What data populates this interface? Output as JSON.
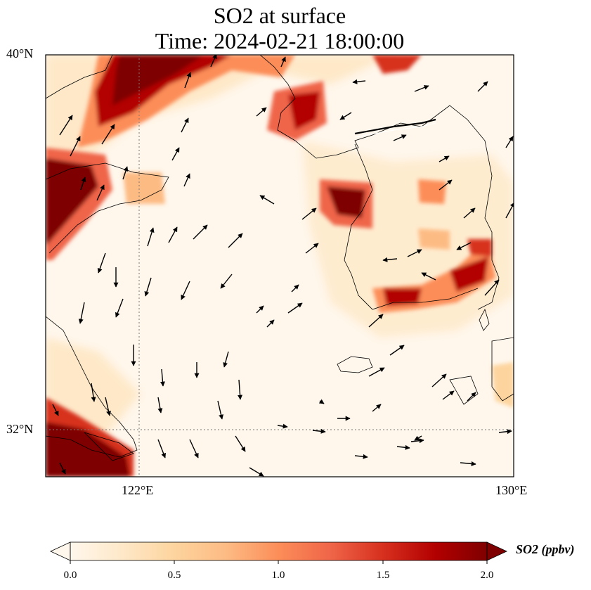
{
  "title": {
    "line1": "SO2 at surface",
    "line2": "Time: 2024-02-21 18:00:00"
  },
  "map": {
    "lat_labels": [
      "40°N",
      "32°N"
    ],
    "lon_labels": [
      "122°E",
      "130°E"
    ],
    "extent": {
      "lon_min": 120,
      "lon_max": 130,
      "lat_min": 31,
      "lat_max": 40
    },
    "gridlines": {
      "lon": [
        122
      ],
      "lat": [
        32
      ],
      "style": "dotted"
    },
    "wind_vectors": "shown as black arrows"
  },
  "colorbar": {
    "label": "SO2 (ppbv)",
    "ticks": [
      "0.0",
      "0.5",
      "1.0",
      "1.5",
      "2.0"
    ],
    "range": [
      0,
      2
    ],
    "extend": "both",
    "colormap": [
      "#fff7ec",
      "#fee8c8",
      "#fdd49e",
      "#fdbb84",
      "#fc8d59",
      "#ef6548",
      "#d7301f",
      "#b30000",
      "#7f0000"
    ]
  }
}
